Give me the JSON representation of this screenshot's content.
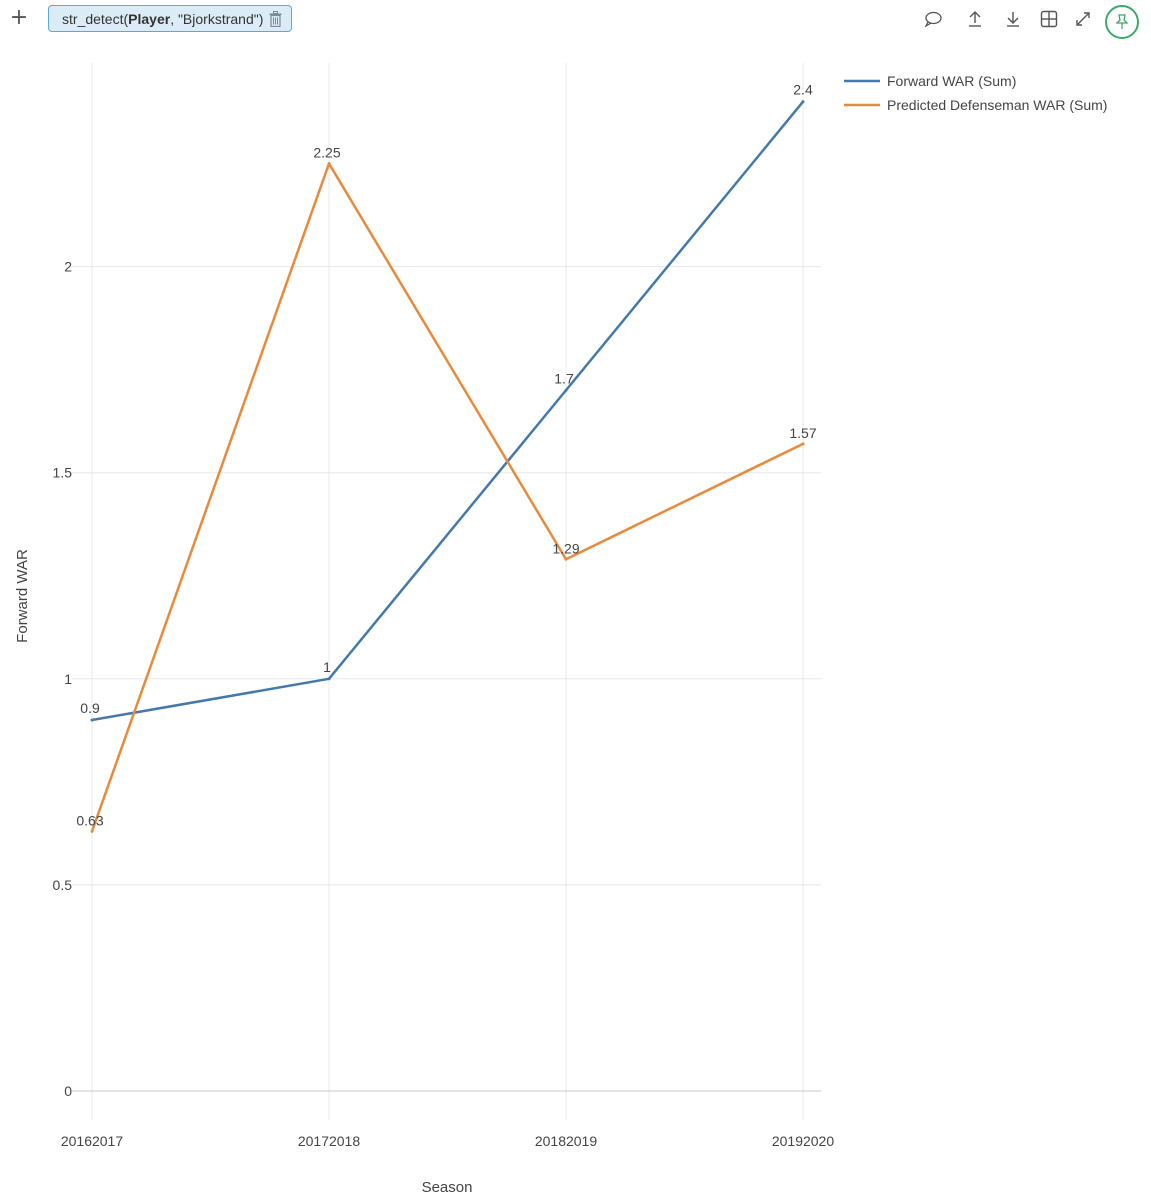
{
  "toolbar": {
    "add_label": "+",
    "filter": {
      "func": "str_detect(",
      "field": "Player",
      "rest": ", \"Bjorkstrand\")"
    },
    "icons": [
      "comment-icon",
      "upload-icon",
      "download-icon",
      "grid-icon",
      "expand-icon",
      "pin-icon"
    ]
  },
  "colors": {
    "forward": "#4479a9",
    "defenseman": "#e88a3c",
    "grid": "#e8e8e8",
    "pin": "#3ea86b",
    "chip_border": "#5aa9d6",
    "chip_bg": "#dcecf7"
  },
  "chart_data": {
    "type": "line",
    "categories": [
      "20162017",
      "20172018",
      "20182019",
      "20192020"
    ],
    "series": [
      {
        "name": "Forward WAR (Sum)",
        "values": [
          0.9,
          1,
          1.7,
          2.4
        ],
        "labels": [
          "0.9",
          "1",
          "1.7",
          "2.4"
        ]
      },
      {
        "name": "Predicted Defenseman WAR (Sum)",
        "values": [
          0.63,
          2.25,
          1.29,
          1.57
        ],
        "labels": [
          "0.63",
          "2.25",
          "1.29",
          "1.57"
        ]
      }
    ],
    "xlabel": "Season",
    "ylabel": "Forward WAR",
    "yticks": [
      0,
      0.5,
      1,
      1.5,
      2
    ],
    "ytick_labels": [
      "0",
      "0.5",
      "1",
      "1.5",
      "2"
    ],
    "ylim": [
      0,
      2.46
    ],
    "grid": true,
    "legend": "top-right"
  }
}
